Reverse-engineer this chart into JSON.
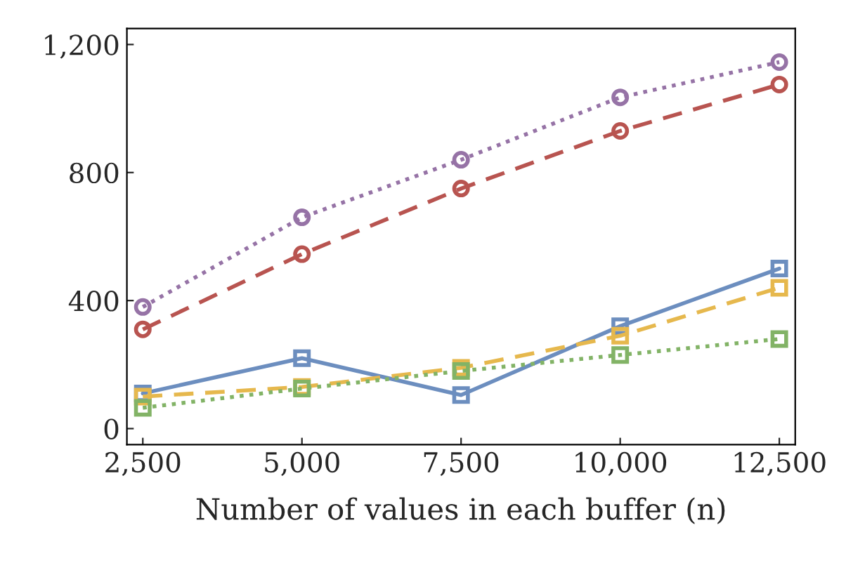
{
  "chart_data": {
    "type": "line",
    "xlabel": "Number of values in each buffer (n)",
    "x": [
      2500,
      5000,
      7500,
      10000,
      12500
    ],
    "xlim": [
      2250,
      12750
    ],
    "xticks": [
      {
        "value": 2500,
        "label": "2,500"
      },
      {
        "value": 5000,
        "label": "5,000"
      },
      {
        "value": 7500,
        "label": "7,500"
      },
      {
        "value": 10000,
        "label": "10,000"
      },
      {
        "value": 12500,
        "label": "12,500"
      }
    ],
    "ylim": [
      -50,
      1250
    ],
    "yticks": [
      0,
      400,
      800,
      {
        "value": 1200,
        "label": "1,200"
      }
    ],
    "grid": false,
    "legend": false,
    "series": [
      {
        "color": "#9673a6",
        "marker": "circle",
        "line_style": "dotted",
        "values": [
          380,
          660,
          840,
          1035,
          1145
        ]
      },
      {
        "color": "#b85450",
        "marker": "circle",
        "line_style": "dashed",
        "values": [
          310,
          545,
          750,
          930,
          1075
        ]
      },
      {
        "color": "#6c8ebf",
        "marker": "square",
        "line_style": "solid",
        "values": [
          110,
          220,
          105,
          320,
          500
        ]
      },
      {
        "color": "#e6b84d",
        "marker": "square",
        "line_style": "dashed",
        "values": [
          100,
          130,
          190,
          290,
          440
        ]
      },
      {
        "color": "#82b366",
        "marker": "square",
        "line_style": "dotted",
        "values": [
          65,
          125,
          180,
          230,
          280
        ]
      }
    ]
  }
}
